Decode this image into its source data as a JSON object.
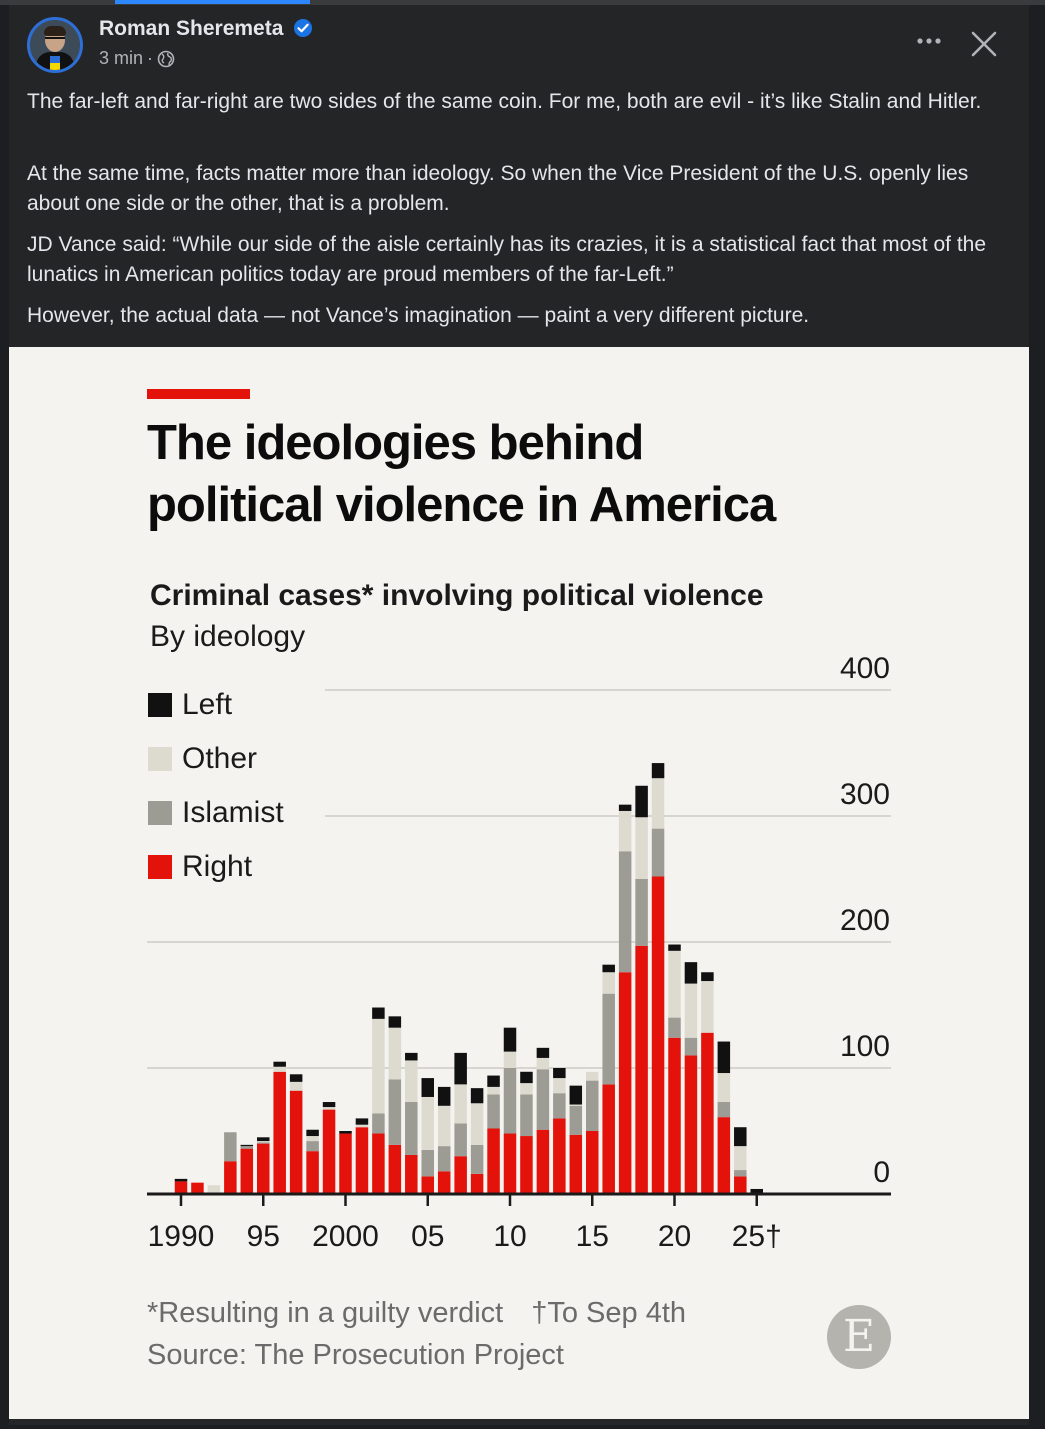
{
  "post": {
    "author": "Roman Sheremeta",
    "time": "3 min",
    "separator": "·",
    "paragraphs": [
      "The far-left and far-right are two sides of the same coin. For me, both are evil - it’s like Stalin and Hitler.",
      "At the same time, facts matter more than ideology. So when the Vice President of the U.S. openly lies about one side or the other, that is a problem.",
      "JD Vance said: “While our side of the aisle certainly has its crazies, it is a statistical fact that most of the lunatics in American politics today are proud members of the far-Left.”",
      "However, the actual data — not Vance’s imagination — paint a very different picture."
    ],
    "icons": {
      "verified": "verified-badge-icon",
      "privacy": "globe-icon",
      "more": "more-options-icon",
      "close": "close-icon"
    }
  },
  "chart_data": {
    "type": "bar",
    "stacked": true,
    "title_lines": [
      "The ideologies behind",
      "political violence in America"
    ],
    "subtitle": "Criminal cases* involving political violence",
    "subtitle2": "By ideology",
    "legend": [
      "Left",
      "Other",
      "Islamist",
      "Right"
    ],
    "colors": {
      "Left": "#111111",
      "Other": "#dddbd0",
      "Islamist": "#9c9b94",
      "Right": "#e3120b",
      "accent": "#e3120b",
      "background": "#f4f3ef"
    },
    "x": [
      1990,
      1991,
      1992,
      1993,
      1994,
      1995,
      1996,
      1997,
      1998,
      1999,
      2000,
      2001,
      2002,
      2003,
      2004,
      2005,
      2006,
      2007,
      2008,
      2009,
      2010,
      2011,
      2012,
      2013,
      2014,
      2015,
      2016,
      2017,
      2018,
      2019,
      2020,
      2021,
      2022,
      2023,
      2024,
      2025
    ],
    "series": [
      {
        "name": "Right",
        "values": [
          10,
          9,
          1,
          26,
          36,
          40,
          97,
          82,
          34,
          67,
          48,
          53,
          48,
          39,
          31,
          14,
          18,
          30,
          16,
          52,
          48,
          46,
          51,
          60,
          47,
          50,
          87,
          176,
          197,
          252,
          124,
          110,
          128,
          61,
          14,
          0
        ]
      },
      {
        "name": "Islamist",
        "values": [
          0,
          0,
          0,
          23,
          2,
          1,
          0,
          0,
          8,
          0,
          0,
          0,
          16,
          52,
          42,
          21,
          20,
          26,
          23,
          27,
          52,
          33,
          48,
          20,
          23,
          40,
          72,
          96,
          53,
          38,
          16,
          14,
          0,
          12,
          5,
          0
        ]
      },
      {
        "name": "Other",
        "values": [
          0,
          0,
          6,
          0,
          0,
          1,
          4,
          7,
          4,
          2,
          0,
          2,
          75,
          41,
          33,
          42,
          32,
          31,
          33,
          6,
          13,
          9,
          9,
          12,
          1,
          7,
          17,
          32,
          49,
          40,
          53,
          43,
          41,
          23,
          19,
          0
        ]
      },
      {
        "name": "Left",
        "values": [
          2,
          0,
          0,
          0,
          1,
          3,
          4,
          6,
          5,
          4,
          2,
          5,
          9,
          9,
          6,
          15,
          15,
          25,
          12,
          9,
          19,
          9,
          8,
          8,
          15,
          0,
          6,
          5,
          25,
          12,
          5,
          17,
          7,
          25,
          15,
          4
        ]
      }
    ],
    "ylim": [
      0,
      400
    ],
    "yticks": [
      "0",
      "100",
      "200",
      "300",
      "400"
    ],
    "xticks": [
      "1990",
      "95",
      "2000",
      "05",
      "10",
      "15",
      "20",
      "25†"
    ],
    "xtick_years": [
      1990,
      1995,
      2000,
      2005,
      2010,
      2015,
      2020,
      2025
    ],
    "footnote": "*Resulting in a guilty verdict",
    "footnote2": "†To Sep 4th",
    "source": "Source: The Prosecution Project",
    "logo_letter": "E",
    "grid": true,
    "legend_position": "top-left"
  }
}
